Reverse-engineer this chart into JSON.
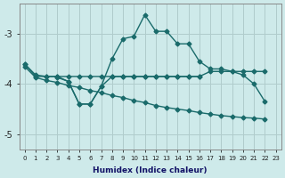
{
  "xlabel": "Humidex (Indice chaleur)",
  "ylim": [
    -5.3,
    -2.4
  ],
  "xlim": [
    -0.5,
    23.5
  ],
  "yticks": [
    -5,
    -4,
    -3
  ],
  "xticks": [
    0,
    1,
    2,
    3,
    4,
    5,
    6,
    7,
    8,
    9,
    10,
    11,
    12,
    13,
    14,
    15,
    16,
    17,
    18,
    19,
    20,
    21,
    22,
    23
  ],
  "bg_color": "#ceeaea",
  "grid_color": "#b0cccc",
  "line_color": "#1a6b6b",
  "markersize": 2.5,
  "linewidth": 1.0,
  "line1_x": [
    0,
    1,
    2,
    3,
    4,
    5,
    6,
    7,
    8,
    9,
    10,
    11,
    12,
    13,
    14,
    15,
    16,
    17,
    18,
    19,
    20,
    21,
    22
  ],
  "line1_y": [
    -3.6,
    -3.85,
    -3.85,
    -3.85,
    -3.85,
    -3.85,
    -3.85,
    -3.85,
    -3.85,
    -3.85,
    -3.85,
    -3.85,
    -3.85,
    -3.85,
    -3.85,
    -3.85,
    -3.85,
    -3.75,
    -3.75,
    -3.75,
    -3.75,
    -3.75,
    -3.75
  ],
  "line2_x": [
    0,
    1,
    2,
    3,
    4,
    5,
    6,
    7,
    8,
    9,
    10,
    11,
    12,
    13,
    14,
    15,
    16,
    17,
    18,
    19,
    20,
    21,
    22
  ],
  "line2_y": [
    -3.65,
    -3.87,
    -3.93,
    -3.97,
    -4.03,
    -4.07,
    -4.13,
    -4.17,
    -4.23,
    -4.27,
    -4.33,
    -4.37,
    -4.43,
    -4.47,
    -4.5,
    -4.53,
    -4.57,
    -4.6,
    -4.63,
    -4.65,
    -4.67,
    -4.68,
    -4.7
  ],
  "line3_x": [
    0,
    1,
    2,
    3,
    4,
    5,
    6,
    7,
    8,
    9,
    10,
    11,
    12,
    13,
    14,
    15,
    16,
    17,
    18,
    19,
    20,
    21,
    22
  ],
  "line3_y": [
    -3.6,
    -3.82,
    -3.85,
    -3.85,
    -3.95,
    -4.4,
    -4.4,
    -4.05,
    -3.5,
    -3.1,
    -3.05,
    -2.62,
    -2.95,
    -2.95,
    -3.2,
    -3.2,
    -3.55,
    -3.7,
    -3.7,
    -3.75,
    -3.82,
    -4.0,
    -4.35
  ],
  "line4_x": [
    3,
    4,
    5,
    6,
    7,
    8,
    9,
    10,
    11,
    12,
    13,
    14,
    15,
    16
  ],
  "line4_y": [
    -3.87,
    -3.95,
    -4.4,
    -4.4,
    -4.05,
    -3.85,
    -3.85,
    -3.85,
    -3.85,
    -3.85,
    -3.85,
    -3.85,
    -3.85,
    -3.85
  ]
}
